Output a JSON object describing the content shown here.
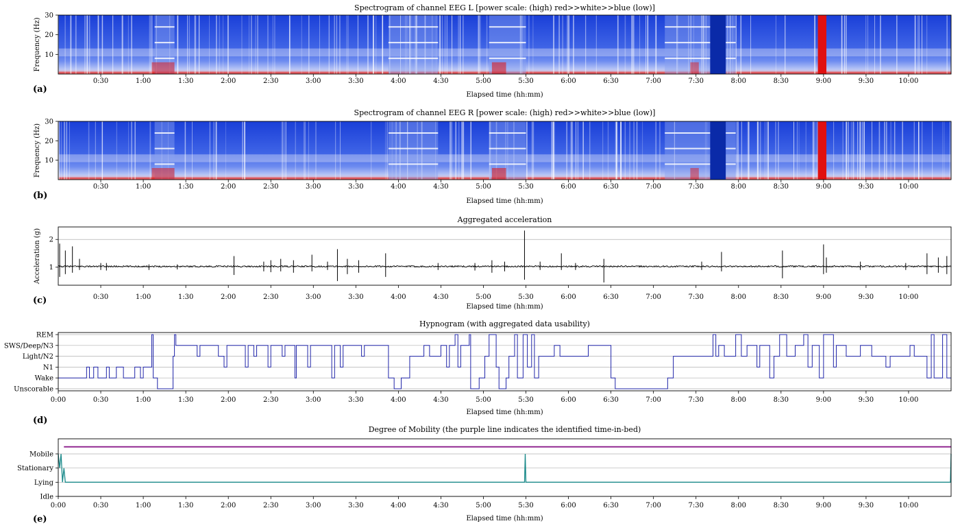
{
  "chart_data": [
    {
      "panel": "(a)",
      "type": "heatmap",
      "title": "Spectrogram of channel EEG L [power scale: (high) red>>white>>blue (low)]",
      "xlabel": "Elapsed time (hh:mm)",
      "ylabel": "Frequency (Hz)",
      "xlim_min": [
        0,
        630
      ],
      "ylim": [
        0,
        30
      ],
      "yticks": [
        10,
        20,
        30
      ],
      "xticks": [
        "0:30",
        "1:00",
        "1:30",
        "2:00",
        "2:30",
        "3:00",
        "3:30",
        "4:00",
        "4:30",
        "5:00",
        "5:30",
        "6:00",
        "6:30",
        "7:00",
        "7:30",
        "8:00",
        "8:30",
        "9:00",
        "9:30",
        "10:00"
      ],
      "colors": {
        "high": "#e01010",
        "mid": "#ffffff",
        "low": "#1a3fd8"
      }
    },
    {
      "panel": "(b)",
      "type": "heatmap",
      "title": "Spectrogram of channel EEG R [power scale: (high) red>>white>>blue (low)]",
      "xlabel": "Elapsed time (hh:mm)",
      "ylabel": "Frequency (Hz)",
      "xlim_min": [
        0,
        630
      ],
      "ylim": [
        0,
        30
      ],
      "yticks": [
        10,
        20,
        30
      ],
      "xticks": [
        "0:30",
        "1:00",
        "1:30",
        "2:00",
        "2:30",
        "3:00",
        "3:30",
        "4:00",
        "4:30",
        "5:00",
        "5:30",
        "6:00",
        "6:30",
        "7:00",
        "7:30",
        "8:00",
        "8:30",
        "9:00",
        "9:30",
        "10:00"
      ],
      "colors": {
        "high": "#e01010",
        "mid": "#ffffff",
        "low": "#1a3fd8"
      }
    },
    {
      "panel": "(c)",
      "type": "line",
      "title": "Aggregated acceleration",
      "xlabel": "Elapsed time (hh:mm)",
      "ylabel": "Acceleration (g)",
      "xlim_min": [
        0,
        630
      ],
      "ylim": [
        0.35,
        2.45
      ],
      "yticks": [
        1,
        2
      ],
      "baseline": 1.03,
      "xticks": [
        "0:30",
        "1:00",
        "1:30",
        "2:00",
        "2:30",
        "3:00",
        "3:30",
        "4:00",
        "4:30",
        "5:00",
        "5:30",
        "6:00",
        "6:30",
        "7:00",
        "7:30",
        "8:00",
        "8:30",
        "9:00",
        "9:30",
        "10:00"
      ],
      "spikes": [
        {
          "t": 1,
          "max": 1.85,
          "min": 0.65
        },
        {
          "t": 5,
          "max": 1.6,
          "min": 0.75
        },
        {
          "t": 10,
          "max": 1.75,
          "min": 0.8
        },
        {
          "t": 15,
          "max": 1.3,
          "min": 0.9
        },
        {
          "t": 30,
          "max": 1.15,
          "min": 0.9
        },
        {
          "t": 34,
          "max": 1.15,
          "min": 0.88
        },
        {
          "t": 64,
          "max": 1.1,
          "min": 0.9
        },
        {
          "t": 84,
          "max": 1.1,
          "min": 0.92
        },
        {
          "t": 124,
          "max": 1.4,
          "min": 0.72
        },
        {
          "t": 145,
          "max": 1.2,
          "min": 0.85
        },
        {
          "t": 150,
          "max": 1.25,
          "min": 0.82
        },
        {
          "t": 157,
          "max": 1.3,
          "min": 0.85
        },
        {
          "t": 166,
          "max": 1.25,
          "min": 0.8
        },
        {
          "t": 179,
          "max": 1.45,
          "min": 0.85
        },
        {
          "t": 190,
          "max": 1.2,
          "min": 0.9
        },
        {
          "t": 197,
          "max": 1.65,
          "min": 0.5
        },
        {
          "t": 204,
          "max": 1.3,
          "min": 0.75
        },
        {
          "t": 212,
          "max": 1.25,
          "min": 0.8
        },
        {
          "t": 231,
          "max": 1.5,
          "min": 0.65
        },
        {
          "t": 268,
          "max": 1.15,
          "min": 0.9
        },
        {
          "t": 294,
          "max": 1.15,
          "min": 0.88
        },
        {
          "t": 306,
          "max": 1.25,
          "min": 0.8
        },
        {
          "t": 315,
          "max": 1.2,
          "min": 0.85
        },
        {
          "t": 329,
          "max": 2.32,
          "min": 0.55
        },
        {
          "t": 340,
          "max": 1.2,
          "min": 0.9
        },
        {
          "t": 355,
          "max": 1.5,
          "min": 0.9
        },
        {
          "t": 365,
          "max": 1.15,
          "min": 0.9
        },
        {
          "t": 385,
          "max": 1.3,
          "min": 0.45
        },
        {
          "t": 454,
          "max": 1.2,
          "min": 0.9
        },
        {
          "t": 468,
          "max": 1.55,
          "min": 0.85
        },
        {
          "t": 511,
          "max": 1.6,
          "min": 0.6
        },
        {
          "t": 540,
          "max": 1.82,
          "min": 0.75
        },
        {
          "t": 542,
          "max": 1.35,
          "min": 0.8
        },
        {
          "t": 566,
          "max": 1.2,
          "min": 0.9
        },
        {
          "t": 598,
          "max": 1.15,
          "min": 0.9
        },
        {
          "t": 613,
          "max": 1.5,
          "min": 0.75
        },
        {
          "t": 621,
          "max": 1.35,
          "min": 0.8
        },
        {
          "t": 627,
          "max": 1.4,
          "min": 0.75
        }
      ]
    },
    {
      "panel": "(d)",
      "type": "line",
      "title": "Hypnogram (with aggregated data usability)",
      "xlabel": "Elapsed time (hh:mm)",
      "categories": [
        "Unscorable",
        "Wake",
        "N1",
        "Light/N2",
        "SWS/Deep/N3",
        "REM"
      ],
      "xlim_min": [
        0,
        630
      ],
      "xticks": [
        "0:00",
        "0:30",
        "1:00",
        "1:30",
        "2:00",
        "2:30",
        "3:00",
        "3:30",
        "4:00",
        "4:30",
        "5:00",
        "5:30",
        "6:00",
        "6:30",
        "7:00",
        "7:30",
        "8:00",
        "8:30",
        "9:00",
        "9:30",
        "10:00"
      ],
      "color": "#1f24a8",
      "segments": [
        {
          "t": 0,
          "stage": 1
        },
        {
          "t": 20,
          "stage": 2
        },
        {
          "t": 22,
          "stage": 1
        },
        {
          "t": 25,
          "stage": 2
        },
        {
          "t": 28,
          "stage": 1
        },
        {
          "t": 34,
          "stage": 2
        },
        {
          "t": 36,
          "stage": 1
        },
        {
          "t": 41,
          "stage": 2
        },
        {
          "t": 46,
          "stage": 1
        },
        {
          "t": 54,
          "stage": 2
        },
        {
          "t": 58,
          "stage": 1
        },
        {
          "t": 60,
          "stage": 2
        },
        {
          "t": 66,
          "stage": 5
        },
        {
          "t": 67,
          "stage": 1
        },
        {
          "t": 70,
          "stage": 0
        },
        {
          "t": 81,
          "stage": 3
        },
        {
          "t": 82,
          "stage": 5
        },
        {
          "t": 83,
          "stage": 4
        },
        {
          "t": 98,
          "stage": 3
        },
        {
          "t": 100,
          "stage": 4
        },
        {
          "t": 113,
          "stage": 3
        },
        {
          "t": 117,
          "stage": 2
        },
        {
          "t": 119,
          "stage": 4
        },
        {
          "t": 132,
          "stage": 2
        },
        {
          "t": 134,
          "stage": 4
        },
        {
          "t": 138,
          "stage": 3
        },
        {
          "t": 140,
          "stage": 4
        },
        {
          "t": 148,
          "stage": 2
        },
        {
          "t": 150,
          "stage": 4
        },
        {
          "t": 158,
          "stage": 3
        },
        {
          "t": 160,
          "stage": 4
        },
        {
          "t": 167,
          "stage": 1
        },
        {
          "t": 168,
          "stage": 4
        },
        {
          "t": 176,
          "stage": 2
        },
        {
          "t": 178,
          "stage": 4
        },
        {
          "t": 193,
          "stage": 1
        },
        {
          "t": 195,
          "stage": 4
        },
        {
          "t": 199,
          "stage": 2
        },
        {
          "t": 201,
          "stage": 4
        },
        {
          "t": 214,
          "stage": 3
        },
        {
          "t": 216,
          "stage": 4
        },
        {
          "t": 233,
          "stage": 1
        },
        {
          "t": 237,
          "stage": 0
        },
        {
          "t": 242,
          "stage": 1
        },
        {
          "t": 248,
          "stage": 3
        },
        {
          "t": 258,
          "stage": 4
        },
        {
          "t": 262,
          "stage": 3
        },
        {
          "t": 270,
          "stage": 4
        },
        {
          "t": 274,
          "stage": 2
        },
        {
          "t": 276,
          "stage": 4
        },
        {
          "t": 280,
          "stage": 5
        },
        {
          "t": 282,
          "stage": 2
        },
        {
          "t": 284,
          "stage": 4
        },
        {
          "t": 290,
          "stage": 5
        },
        {
          "t": 291,
          "stage": 0
        },
        {
          "t": 297,
          "stage": 1
        },
        {
          "t": 301,
          "stage": 3
        },
        {
          "t": 304,
          "stage": 5
        },
        {
          "t": 309,
          "stage": 2
        },
        {
          "t": 311,
          "stage": 0
        },
        {
          "t": 316,
          "stage": 1
        },
        {
          "t": 318,
          "stage": 3
        },
        {
          "t": 322,
          "stage": 5
        },
        {
          "t": 324,
          "stage": 1
        },
        {
          "t": 328,
          "stage": 5
        },
        {
          "t": 331,
          "stage": 2
        },
        {
          "t": 334,
          "stage": 5
        },
        {
          "t": 336,
          "stage": 1
        },
        {
          "t": 339,
          "stage": 3
        },
        {
          "t": 350,
          "stage": 4
        },
        {
          "t": 354,
          "stage": 3
        },
        {
          "t": 367,
          "stage": 3
        },
        {
          "t": 374,
          "stage": 4
        },
        {
          "t": 390,
          "stage": 1
        },
        {
          "t": 393,
          "stage": 0
        },
        {
          "t": 430,
          "stage": 1
        },
        {
          "t": 434,
          "stage": 3
        },
        {
          "t": 462,
          "stage": 5
        },
        {
          "t": 464,
          "stage": 3
        },
        {
          "t": 466,
          "stage": 4
        },
        {
          "t": 470,
          "stage": 3
        },
        {
          "t": 478,
          "stage": 5
        },
        {
          "t": 482,
          "stage": 3
        },
        {
          "t": 486,
          "stage": 4
        },
        {
          "t": 493,
          "stage": 2
        },
        {
          "t": 495,
          "stage": 4
        },
        {
          "t": 502,
          "stage": 1
        },
        {
          "t": 505,
          "stage": 3
        },
        {
          "t": 509,
          "stage": 5
        },
        {
          "t": 514,
          "stage": 3
        },
        {
          "t": 520,
          "stage": 4
        },
        {
          "t": 526,
          "stage": 5
        },
        {
          "t": 529,
          "stage": 2
        },
        {
          "t": 532,
          "stage": 4
        },
        {
          "t": 537,
          "stage": 1
        },
        {
          "t": 540,
          "stage": 5
        },
        {
          "t": 547,
          "stage": 2
        },
        {
          "t": 549,
          "stage": 4
        },
        {
          "t": 556,
          "stage": 3
        },
        {
          "t": 566,
          "stage": 4
        },
        {
          "t": 574,
          "stage": 3
        },
        {
          "t": 584,
          "stage": 2
        },
        {
          "t": 587,
          "stage": 3
        },
        {
          "t": 601,
          "stage": 4
        },
        {
          "t": 604,
          "stage": 3
        },
        {
          "t": 613,
          "stage": 1
        },
        {
          "t": 616,
          "stage": 5
        },
        {
          "t": 618,
          "stage": 1
        },
        {
          "t": 624,
          "stage": 5
        },
        {
          "t": 627,
          "stage": 1
        },
        {
          "t": 630,
          "stage": 1
        }
      ]
    },
    {
      "panel": "(e)",
      "type": "line",
      "title": "Degree of Mobility (the purple line indicates the identified time-in-bed)",
      "xlabel": "Elapsed time (hh:mm)",
      "categories": [
        "Idle",
        "Lying",
        "Stationary",
        "Mobile"
      ],
      "xlim_min": [
        0,
        630
      ],
      "xticks": [
        "0:00",
        "0:30",
        "1:00",
        "1:30",
        "2:00",
        "2:30",
        "3:00",
        "3:30",
        "4:00",
        "4:30",
        "5:00",
        "5:30",
        "6:00",
        "6:30",
        "7:00",
        "7:30",
        "8:00",
        "8:30",
        "9:00",
        "9:30",
        "10:00"
      ],
      "time_in_bed": {
        "start": 4,
        "end": 630,
        "level": 3.5,
        "color": "#8b1a8b"
      },
      "mobility_color": "#1a8a8a",
      "mobility": [
        {
          "t": 0,
          "v": 3
        },
        {
          "t": 1,
          "v": 2
        },
        {
          "t": 2,
          "v": 3
        },
        {
          "t": 3,
          "v": 1
        },
        {
          "t": 4,
          "v": 2
        },
        {
          "t": 5,
          "v": 1
        },
        {
          "t": 329,
          "v": 1
        },
        {
          "t": 329.5,
          "v": 3
        },
        {
          "t": 330,
          "v": 1
        },
        {
          "t": 629.5,
          "v": 1
        },
        {
          "t": 630,
          "v": 3
        }
      ]
    }
  ]
}
